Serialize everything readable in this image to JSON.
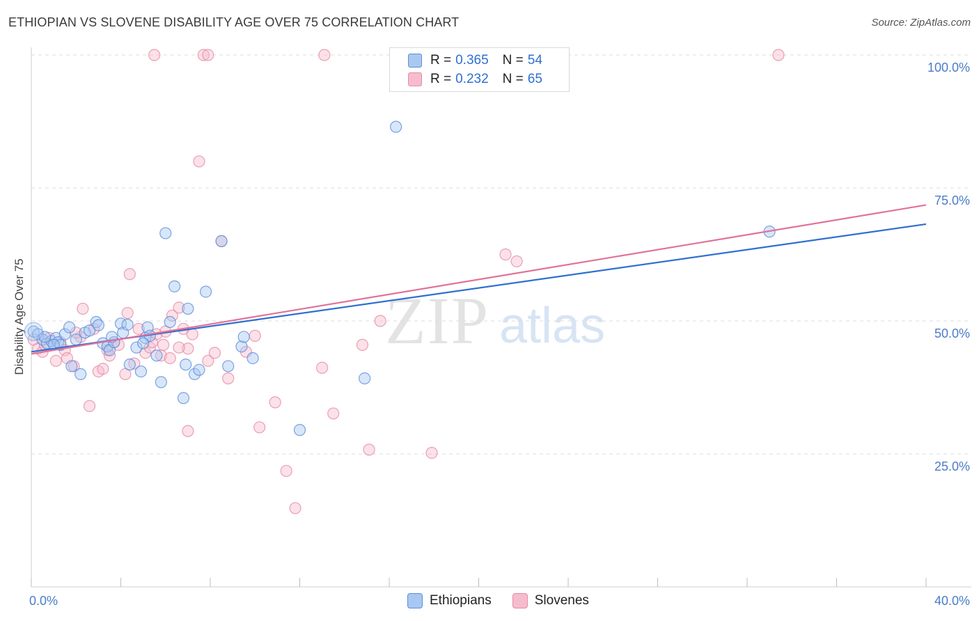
{
  "header": {
    "title": "ETHIOPIAN VS SLOVENE DISABILITY AGE OVER 75 CORRELATION CHART",
    "source": "Source: ZipAtlas.com"
  },
  "watermark": {
    "zip": "ZIP",
    "atlas": "atlas"
  },
  "colors": {
    "blue_fill": "#a9c8f1",
    "blue_stroke": "#5b8fd8",
    "blue_line": "#2f6fd1",
    "pink_fill": "#f6bccd",
    "pink_stroke": "#e68aa8",
    "pink_line": "#e07299",
    "tick_text": "#4a7cc9"
  },
  "legend_top": {
    "rows": [
      {
        "r_label": "R =",
        "r_value": "0.365",
        "n_label": "N =",
        "n_value": "54"
      },
      {
        "r_label": "R =",
        "r_value": "0.232",
        "n_label": "N =",
        "n_value": "65"
      }
    ]
  },
  "legend_bottom": [
    "Ethiopians",
    "Slovenes"
  ],
  "chart_data": {
    "type": "scatter",
    "title": "ETHIOPIAN VS SLOVENE DISABILITY AGE OVER 75 CORRELATION CHART",
    "xlabel": "",
    "ylabel": "Disability Age Over 75",
    "xlim": [
      0,
      40
    ],
    "ylim": [
      0,
      100
    ],
    "x_tick_labels": [
      "0.0%",
      "40.0%"
    ],
    "y_ticks": [
      25,
      50,
      75,
      100
    ],
    "y_tick_labels": [
      "25.0%",
      "50.0%",
      "75.0%",
      "100.0%"
    ],
    "grid": "horizontal dashed",
    "legend": "top-center and bottom-center",
    "series": [
      {
        "name": "Ethiopians",
        "r": 0.365,
        "n": 54,
        "trend": [
          [
            0,
            44.2
          ],
          [
            40,
            68.2
          ]
        ],
        "points": [
          [
            0.1,
            48.0
          ],
          [
            0.3,
            47.5
          ],
          [
            0.5,
            46.5
          ],
          [
            0.7,
            45.8
          ],
          [
            0.9,
            46.2
          ],
          [
            1.1,
            46.8
          ],
          [
            1.2,
            46.0
          ],
          [
            1.3,
            45.5
          ],
          [
            1.5,
            47.5
          ],
          [
            1.7,
            48.8
          ],
          [
            1.8,
            41.5
          ],
          [
            2.0,
            46.5
          ],
          [
            2.2,
            40.0
          ],
          [
            2.4,
            47.8
          ],
          [
            2.6,
            48.2
          ],
          [
            2.9,
            49.8
          ],
          [
            3.0,
            49.2
          ],
          [
            3.2,
            45.8
          ],
          [
            3.4,
            45.2
          ],
          [
            3.5,
            44.5
          ],
          [
            3.7,
            46.0
          ],
          [
            4.0,
            49.5
          ],
          [
            4.1,
            47.8
          ],
          [
            4.3,
            49.3
          ],
          [
            4.4,
            41.8
          ],
          [
            4.7,
            45.0
          ],
          [
            4.9,
            40.5
          ],
          [
            5.1,
            46.8
          ],
          [
            5.2,
            48.8
          ],
          [
            5.3,
            47.2
          ],
          [
            5.6,
            43.5
          ],
          [
            5.8,
            38.5
          ],
          [
            6.0,
            66.5
          ],
          [
            6.2,
            49.8
          ],
          [
            6.4,
            56.5
          ],
          [
            6.8,
            35.5
          ],
          [
            6.9,
            41.8
          ],
          [
            7.0,
            52.3
          ],
          [
            7.3,
            40.0
          ],
          [
            7.5,
            40.8
          ],
          [
            7.8,
            55.5
          ],
          [
            8.5,
            65.0
          ],
          [
            8.8,
            41.5
          ],
          [
            9.4,
            45.2
          ],
          [
            9.5,
            47.0
          ],
          [
            9.9,
            43.0
          ],
          [
            12.0,
            29.5
          ],
          [
            14.9,
            39.2
          ],
          [
            16.3,
            86.5
          ],
          [
            33.0,
            66.8
          ],
          [
            0.6,
            47.0
          ],
          [
            1.0,
            45.5
          ],
          [
            3.6,
            47.0
          ],
          [
            5.0,
            45.8
          ]
        ]
      },
      {
        "name": "Slovenes",
        "r": 0.232,
        "n": 65,
        "trend": [
          [
            0,
            43.8
          ],
          [
            40,
            71.8
          ]
        ],
        "points": [
          [
            0.1,
            46.5
          ],
          [
            0.3,
            44.8
          ],
          [
            0.5,
            44.2
          ],
          [
            0.6,
            45.5
          ],
          [
            0.8,
            46.8
          ],
          [
            1.1,
            42.5
          ],
          [
            1.3,
            46.0
          ],
          [
            1.5,
            44.5
          ],
          [
            1.6,
            43.0
          ],
          [
            1.9,
            41.5
          ],
          [
            2.2,
            47.0
          ],
          [
            2.3,
            52.3
          ],
          [
            2.6,
            34.0
          ],
          [
            2.8,
            48.5
          ],
          [
            3.0,
            40.5
          ],
          [
            3.2,
            41.0
          ],
          [
            3.4,
            44.5
          ],
          [
            3.5,
            43.5
          ],
          [
            3.7,
            46.0
          ],
          [
            3.9,
            45.5
          ],
          [
            4.2,
            40.0
          ],
          [
            4.3,
            51.5
          ],
          [
            4.4,
            58.8
          ],
          [
            4.6,
            42.0
          ],
          [
            4.8,
            48.5
          ],
          [
            5.1,
            44.0
          ],
          [
            5.3,
            45.0
          ],
          [
            5.4,
            46.0
          ],
          [
            5.6,
            47.5
          ],
          [
            5.8,
            43.5
          ],
          [
            5.9,
            45.5
          ],
          [
            6.0,
            48.0
          ],
          [
            6.2,
            43.0
          ],
          [
            6.3,
            51.0
          ],
          [
            6.6,
            52.5
          ],
          [
            6.8,
            48.5
          ],
          [
            7.0,
            44.8
          ],
          [
            7.2,
            47.5
          ],
          [
            7.5,
            80.0
          ],
          [
            7.9,
            42.5
          ],
          [
            8.2,
            44.0
          ],
          [
            8.5,
            65.0
          ],
          [
            8.8,
            39.2
          ],
          [
            9.6,
            44.2
          ],
          [
            10.0,
            47.2
          ],
          [
            10.2,
            30.0
          ],
          [
            10.9,
            34.7
          ],
          [
            11.4,
            21.8
          ],
          [
            11.8,
            14.8
          ],
          [
            13.0,
            41.2
          ],
          [
            13.5,
            32.6
          ],
          [
            14.8,
            45.5
          ],
          [
            15.1,
            25.8
          ],
          [
            15.6,
            50.0
          ],
          [
            17.9,
            25.2
          ],
          [
            21.2,
            62.5
          ],
          [
            21.7,
            61.2
          ],
          [
            5.5,
            100.0
          ],
          [
            7.7,
            100.0
          ],
          [
            7.9,
            100.0
          ],
          [
            13.1,
            100.0
          ],
          [
            33.4,
            100.0
          ],
          [
            7.0,
            29.3
          ],
          [
            2.0,
            47.8
          ],
          [
            6.6,
            45.0
          ]
        ]
      }
    ]
  }
}
